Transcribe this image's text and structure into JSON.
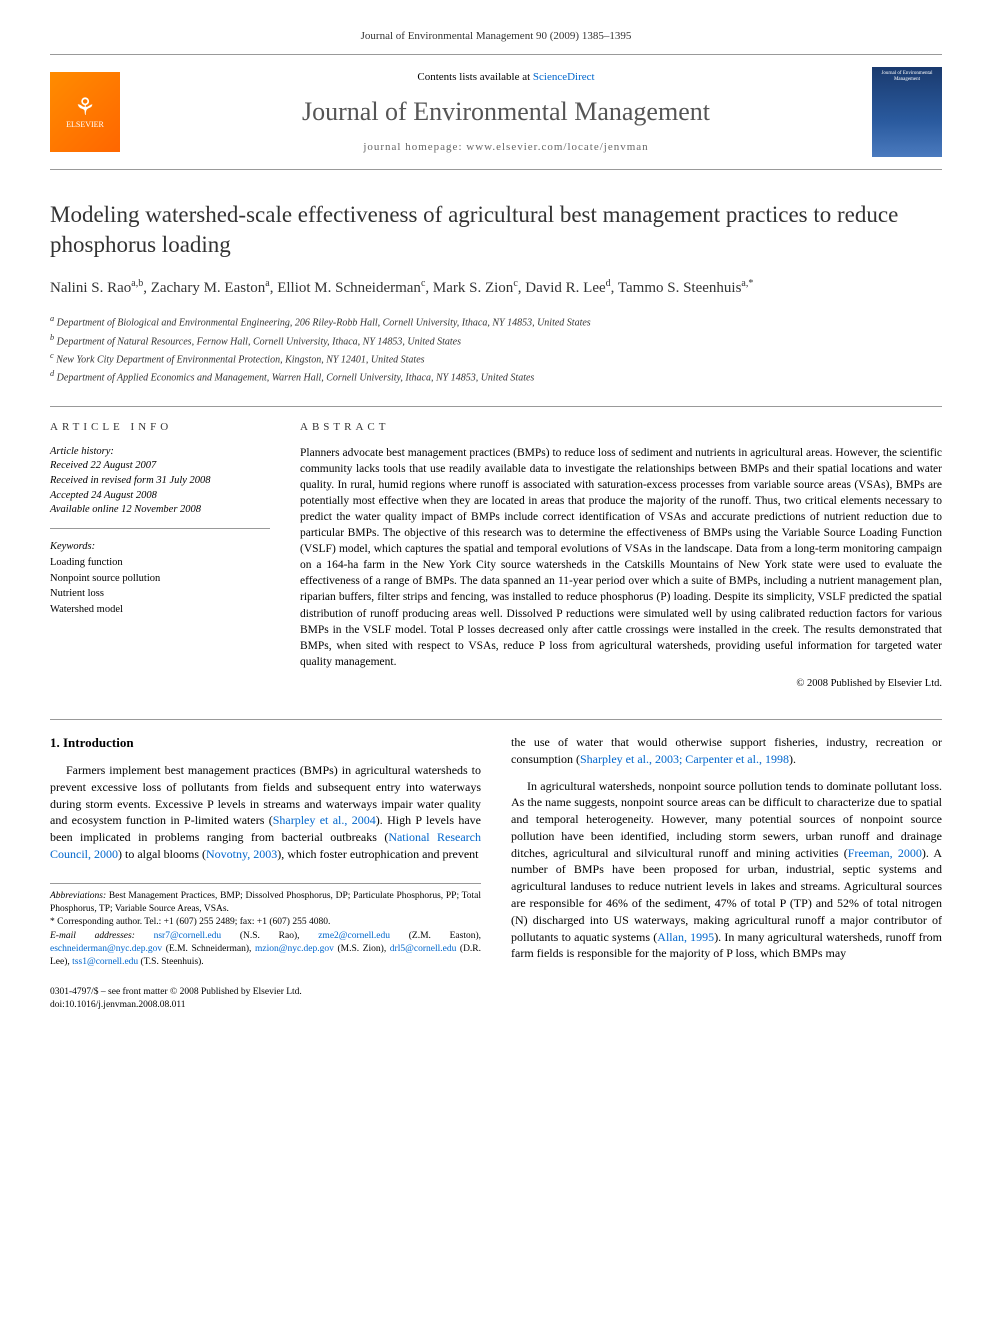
{
  "header": {
    "citation": "Journal of Environmental Management 90 (2009) 1385–1395"
  },
  "banner": {
    "publisher": "ELSEVIER",
    "contents_prefix": "Contents lists available at ",
    "contents_link": "ScienceDirect",
    "journal_name": "Journal of Environmental Management",
    "homepage_label": "journal homepage: ",
    "homepage_url": "www.elsevier.com/locate/jenvman",
    "cover_text": "Journal of Environmental Management"
  },
  "article": {
    "title": "Modeling watershed-scale effectiveness of agricultural best management practices to reduce phosphorus loading",
    "authors_html": "Nalini S. Rao<sup>a,b</sup>, Zachary M. Easton<sup>a</sup>, Elliot M. Schneiderman<sup>c</sup>, Mark S. Zion<sup>c</sup>, David R. Lee<sup>d</sup>, Tammo S. Steenhuis<sup>a,*</sup>",
    "affiliations": [
      "a Department of Biological and Environmental Engineering, 206 Riley-Robb Hall, Cornell University, Ithaca, NY 14853, United States",
      "b Department of Natural Resources, Fernow Hall, Cornell University, Ithaca, NY 14853, United States",
      "c New York City Department of Environmental Protection, Kingston, NY 12401, United States",
      "d Department of Applied Economics and Management, Warren Hall, Cornell University, Ithaca, NY 14853, United States"
    ]
  },
  "info": {
    "label": "ARTICLE INFO",
    "history_label": "Article history:",
    "history": [
      "Received 22 August 2007",
      "Received in revised form 31 July 2008",
      "Accepted 24 August 2008",
      "Available online 12 November 2008"
    ],
    "keywords_label": "Keywords:",
    "keywords": [
      "Loading function",
      "Nonpoint source pollution",
      "Nutrient loss",
      "Watershed model"
    ]
  },
  "abstract": {
    "label": "ABSTRACT",
    "text": "Planners advocate best management practices (BMPs) to reduce loss of sediment and nutrients in agricultural areas. However, the scientific community lacks tools that use readily available data to investigate the relationships between BMPs and their spatial locations and water quality. In rural, humid regions where runoff is associated with saturation-excess processes from variable source areas (VSAs), BMPs are potentially most effective when they are located in areas that produce the majority of the runoff. Thus, two critical elements necessary to predict the water quality impact of BMPs include correct identification of VSAs and accurate predictions of nutrient reduction due to particular BMPs. The objective of this research was to determine the effectiveness of BMPs using the Variable Source Loading Function (VSLF) model, which captures the spatial and temporal evolutions of VSAs in the landscape. Data from a long-term monitoring campaign on a 164-ha farm in the New York City source watersheds in the Catskills Mountains of New York state were used to evaluate the effectiveness of a range of BMPs. The data spanned an 11-year period over which a suite of BMPs, including a nutrient management plan, riparian buffers, filter strips and fencing, was installed to reduce phosphorus (P) loading. Despite its simplicity, VSLF predicted the spatial distribution of runoff producing areas well. Dissolved P reductions were simulated well by using calibrated reduction factors for various BMPs in the VSLF model. Total P losses decreased only after cattle crossings were installed in the creek. The results demonstrated that BMPs, when sited with respect to VSAs, reduce P loss from agricultural watersheds, providing useful information for targeted water quality management.",
    "copyright": "© 2008 Published by Elsevier Ltd."
  },
  "body": {
    "section1_heading": "1. Introduction",
    "left_p1_a": "Farmers implement best management practices (BMPs) in agricultural watersheds to prevent excessive loss of pollutants from fields and subsequent entry into waterways during storm events. Excessive P levels in streams and waterways impair water quality and ecosystem function in P-limited waters (",
    "left_ref1": "Sharpley et al., 2004",
    "left_p1_b": "). High P levels have been implicated in problems ranging from bacterial outbreaks (",
    "left_ref2": "National Research Council, 2000",
    "left_p1_c": ") to algal blooms (",
    "left_ref3": "Novotny, 2003",
    "left_p1_d": "), which foster eutrophication and prevent",
    "right_p1_a": "the use of water that would otherwise support fisheries, industry, recreation or consumption (",
    "right_ref1": "Sharpley et al., 2003; Carpenter et al., 1998",
    "right_p1_b": ").",
    "right_p2_a": "In agricultural watersheds, nonpoint source pollution tends to dominate pollutant loss. As the name suggests, nonpoint source areas can be difficult to characterize due to spatial and temporal heterogeneity. However, many potential sources of nonpoint source pollution have been identified, including storm sewers, urban runoff and drainage ditches, agricultural and silvicultural runoff and mining activities (",
    "right_ref2": "Freeman, 2000",
    "right_p2_b": "). A number of BMPs have been proposed for urban, industrial, septic systems and agricultural landuses to reduce nutrient levels in lakes and streams. Agricultural sources are responsible for 46% of the sediment, 47% of total P (TP) and 52% of total nitrogen (N) discharged into US waterways, making agricultural runoff a major contributor of pollutants to aquatic systems (",
    "right_ref3": "Allan, 1995",
    "right_p2_c": "). In many agricultural watersheds, runoff from farm fields is responsible for the majority of P loss, which BMPs may"
  },
  "footnotes": {
    "abbrev_label": "Abbreviations:",
    "abbrev_text": " Best Management Practices, BMP; Dissolved Phosphorus, DP; Particulate Phosphorus, PP; Total Phosphorus, TP; Variable Source Areas, VSAs.",
    "corr_label": "* Corresponding author. ",
    "corr_text": "Tel.: +1 (607) 255 2489; fax: +1 (607) 255 4080.",
    "email_label": "E-mail addresses:",
    "emails": [
      {
        "email": "nsr7@cornell.edu",
        "name": "(N.S. Rao)"
      },
      {
        "email": "zme2@cornell.edu",
        "name": "(Z.M. Easton)"
      },
      {
        "email": "eschneiderman@nyc.dep.gov",
        "name": "(E.M. Schneiderman)"
      },
      {
        "email": "mzion@nyc.dep.gov",
        "name": "(M.S. Zion)"
      },
      {
        "email": "drl5@cornell.edu",
        "name": "(D.R. Lee)"
      },
      {
        "email": "tss1@cornell.edu",
        "name": "(T.S. Steenhuis)."
      }
    ]
  },
  "footer": {
    "line1": "0301-4797/$ – see front matter © 2008 Published by Elsevier Ltd.",
    "line2": "doi:10.1016/j.jenvman.2008.08.011"
  }
}
